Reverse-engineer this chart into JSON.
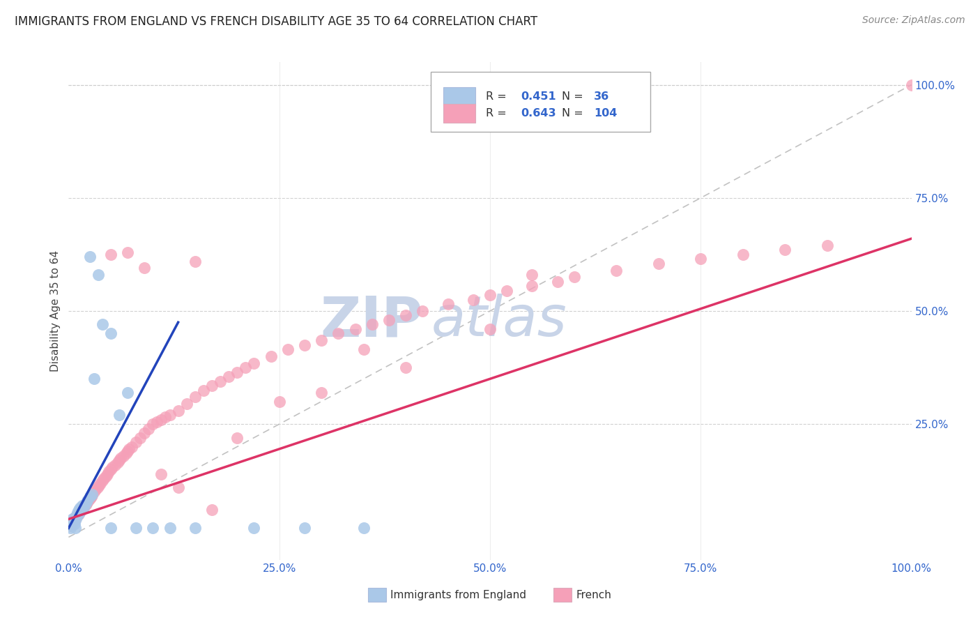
{
  "title": "IMMIGRANTS FROM ENGLAND VS FRENCH DISABILITY AGE 35 TO 64 CORRELATION CHART",
  "source": "Source: ZipAtlas.com",
  "ylabel": "Disability Age 35 to 64",
  "xlim": [
    0,
    1.0
  ],
  "ylim": [
    -0.05,
    1.05
  ],
  "x_tick_labels": [
    "0.0%",
    "25.0%",
    "50.0%",
    "75.0%",
    "100.0%"
  ],
  "x_tick_positions": [
    0,
    0.25,
    0.5,
    0.75,
    1.0
  ],
  "right_y_tick_labels": [
    "100.0%",
    "75.0%",
    "50.0%",
    "25.0%"
  ],
  "right_y_tick_positions": [
    1.0,
    0.75,
    0.5,
    0.25
  ],
  "legend_r_england": "0.451",
  "legend_n_england": "36",
  "legend_r_french": "0.643",
  "legend_n_french": "104",
  "england_color": "#aac8e8",
  "french_color": "#f5a0b8",
  "england_line_color": "#2244bb",
  "french_line_color": "#dd3366",
  "diagonal_color": "#bbbbbb",
  "watermark_zip_color": "#c8d4e8",
  "watermark_atlas_color": "#c8d4e8",
  "england_x": [
    0.002,
    0.003,
    0.004,
    0.005,
    0.006,
    0.007,
    0.008,
    0.009,
    0.01,
    0.011,
    0.012,
    0.013,
    0.014,
    0.015,
    0.016,
    0.018,
    0.02,
    0.022,
    0.025,
    0.028,
    0.03,
    0.035,
    0.04,
    0.05,
    0.06,
    0.07,
    0.08,
    0.1,
    0.12,
    0.15,
    0.22,
    0.28,
    0.35,
    0.05,
    0.025,
    0.008
  ],
  "england_y": [
    0.02,
    0.03,
    0.025,
    0.04,
    0.035,
    0.03,
    0.045,
    0.04,
    0.055,
    0.05,
    0.06,
    0.055,
    0.065,
    0.06,
    0.07,
    0.065,
    0.075,
    0.08,
    0.09,
    0.095,
    0.35,
    0.58,
    0.47,
    0.45,
    0.27,
    0.32,
    0.02,
    0.02,
    0.02,
    0.02,
    0.02,
    0.02,
    0.02,
    0.02,
    0.62,
    0.02
  ],
  "french_x": [
    0.003,
    0.004,
    0.005,
    0.006,
    0.007,
    0.008,
    0.009,
    0.01,
    0.011,
    0.012,
    0.013,
    0.014,
    0.015,
    0.016,
    0.017,
    0.018,
    0.019,
    0.02,
    0.021,
    0.022,
    0.023,
    0.024,
    0.025,
    0.026,
    0.027,
    0.028,
    0.03,
    0.032,
    0.034,
    0.036,
    0.038,
    0.04,
    0.042,
    0.044,
    0.046,
    0.048,
    0.05,
    0.052,
    0.055,
    0.058,
    0.06,
    0.062,
    0.065,
    0.068,
    0.07,
    0.072,
    0.075,
    0.08,
    0.085,
    0.09,
    0.095,
    0.1,
    0.105,
    0.11,
    0.115,
    0.12,
    0.13,
    0.14,
    0.15,
    0.16,
    0.17,
    0.18,
    0.19,
    0.2,
    0.21,
    0.22,
    0.24,
    0.26,
    0.28,
    0.3,
    0.32,
    0.34,
    0.36,
    0.38,
    0.4,
    0.42,
    0.45,
    0.48,
    0.5,
    0.52,
    0.55,
    0.58,
    0.6,
    0.65,
    0.7,
    0.75,
    0.8,
    0.85,
    0.9,
    0.35,
    0.4,
    0.3,
    0.25,
    0.2,
    0.15,
    0.5,
    0.55,
    0.05,
    0.07,
    0.09,
    0.11,
    0.13,
    0.17,
    1.0
  ],
  "french_y": [
    0.025,
    0.03,
    0.035,
    0.04,
    0.038,
    0.042,
    0.045,
    0.048,
    0.05,
    0.052,
    0.055,
    0.058,
    0.06,
    0.062,
    0.065,
    0.068,
    0.07,
    0.072,
    0.075,
    0.078,
    0.08,
    0.082,
    0.085,
    0.088,
    0.09,
    0.093,
    0.1,
    0.105,
    0.11,
    0.115,
    0.12,
    0.125,
    0.13,
    0.135,
    0.14,
    0.145,
    0.15,
    0.155,
    0.16,
    0.165,
    0.17,
    0.175,
    0.18,
    0.185,
    0.19,
    0.195,
    0.2,
    0.21,
    0.22,
    0.23,
    0.24,
    0.25,
    0.255,
    0.26,
    0.265,
    0.27,
    0.28,
    0.295,
    0.31,
    0.325,
    0.335,
    0.345,
    0.355,
    0.365,
    0.375,
    0.385,
    0.4,
    0.415,
    0.425,
    0.435,
    0.45,
    0.46,
    0.47,
    0.48,
    0.49,
    0.5,
    0.515,
    0.525,
    0.535,
    0.545,
    0.555,
    0.565,
    0.575,
    0.59,
    0.605,
    0.615,
    0.625,
    0.635,
    0.645,
    0.415,
    0.375,
    0.32,
    0.3,
    0.22,
    0.61,
    0.46,
    0.58,
    0.625,
    0.63,
    0.595,
    0.14,
    0.11,
    0.06,
    1.0
  ],
  "england_line_x": [
    0.0,
    0.13
  ],
  "england_line_y_intercept": 0.02,
  "england_line_slope": 3.5,
  "french_line_x": [
    0.0,
    1.0
  ],
  "french_line_y_intercept": 0.04,
  "french_line_slope": 0.62
}
